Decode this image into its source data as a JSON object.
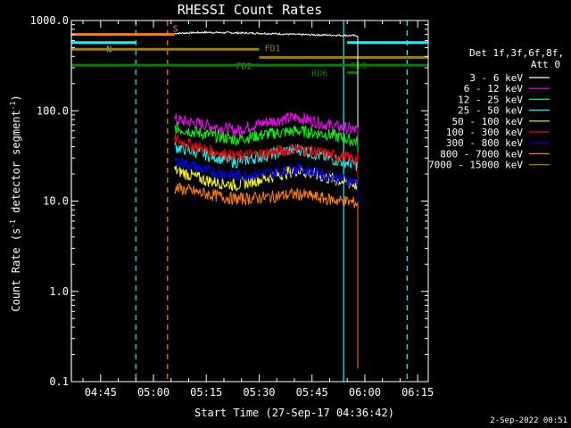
{
  "chart_data": {
    "type": "line",
    "title": "RHESSI Count Rates",
    "xlabel": "Start Time (27-Sep-17 04:36:42)",
    "ylabel_parts": {
      "base": "Count Rate (s",
      "sup1": "-1",
      "mid": " detector segment",
      "sup2": "-1",
      "end": ")"
    },
    "yscale": "log",
    "ylim": [
      0.1,
      1000
    ],
    "xlim": [
      "04:36:42",
      "06:18:00"
    ],
    "x_ticks": [
      "04:45",
      "05:00",
      "05:15",
      "05:30",
      "05:45",
      "06:00",
      "06:15"
    ],
    "y_ticks": [
      "0.1",
      "1.0",
      "10.0",
      "100.0",
      "1000.0"
    ],
    "legend_title": [
      "Det 1f,3f,6f,8f,",
      "Att 0"
    ],
    "legend_placement": "right",
    "series": [
      {
        "name": "3 - 6 keV",
        "color": "#ffffff",
        "start": "05:06",
        "end": "05:58",
        "level": [
          720,
          740,
          730,
          720,
          700,
          690,
          680
        ]
      },
      {
        "name": "6 - 12 keV",
        "color": "#ff00ff",
        "start": "05:06",
        "end": "05:58",
        "level": [
          80,
          70,
          60,
          75,
          85,
          70,
          60
        ]
      },
      {
        "name": "12 - 25 keV",
        "color": "#00ff00",
        "start": "05:06",
        "end": "05:58",
        "level": [
          65,
          55,
          48,
          55,
          60,
          55,
          45
        ]
      },
      {
        "name": "25 - 50 keV",
        "color": "#00ffff",
        "start": "05:06",
        "end": "05:58",
        "level": [
          40,
          33,
          27,
          32,
          38,
          30,
          25
        ]
      },
      {
        "name": "50 - 100 keV",
        "color": "#ffff00",
        "start": "05:06",
        "end": "05:58",
        "level": [
          22,
          17,
          15,
          18,
          22,
          18,
          15
        ]
      },
      {
        "name": "100 - 300 keV",
        "color": "#ff0000",
        "start": "05:06",
        "end": "05:58",
        "level": [
          48,
          37,
          31,
          34,
          38,
          33,
          29
        ]
      },
      {
        "name": "300 - 800 keV",
        "color": "#0000ff",
        "start": "05:06",
        "end": "05:58",
        "level": [
          28,
          22,
          19,
          20,
          23,
          19,
          16
        ]
      },
      {
        "name": "800 - 7000 keV",
        "color": "#ff8000",
        "start": "05:06",
        "end": "05:58",
        "level": [
          14,
          12,
          10.5,
          11,
          12,
          10.5,
          9.5
        ]
      },
      {
        "name": "7000 - 15000 keV",
        "color": "#a08000",
        "start": "05:06",
        "end": "05:58",
        "level": [],
        "hidden": true
      }
    ],
    "attenuator_bars": [
      {
        "label": "",
        "color": "#ff8000",
        "start": "04:36:42",
        "end": "05:05",
        "y": 700
      },
      {
        "label": "S",
        "color": "#ff8000",
        "start": "05:05",
        "end": "05:06",
        "y": 700
      },
      {
        "label": "N",
        "color": "#00ffff",
        "start": "04:36:42",
        "end": "04:55",
        "y": 570
      },
      {
        "label": "",
        "color": "#00ffff",
        "start": "05:55",
        "end": "06:18",
        "y": 570
      },
      {
        "label": "FD1",
        "color": "#a08000",
        "start": "04:36:42",
        "end": "05:30",
        "y": 480
      },
      {
        "label": "FD2",
        "color": "#a08000",
        "start": "05:30",
        "end": "06:18",
        "y": 390
      },
      {
        "label": "RD6",
        "color": "#008000",
        "start": "05:55",
        "end": "05:58",
        "y": 265
      },
      {
        "label": "RD3",
        "color": "#008000",
        "start": "04:36:42",
        "end": "06:18",
        "y": 320
      }
    ],
    "vlines": [
      {
        "t": "04:36:42",
        "color": "#00ffff",
        "style": "solid"
      },
      {
        "t": "04:55",
        "color": "#00ffff",
        "style": "dashed"
      },
      {
        "t": "05:04",
        "color": "#ff8000",
        "style": "dashed"
      },
      {
        "t": "05:54",
        "color": "#00ffff",
        "style": "solid"
      },
      {
        "t": "06:12",
        "color": "#00ffff",
        "style": "dashed"
      }
    ]
  },
  "footer": {
    "date": "2-Sep-2022 00:51"
  }
}
